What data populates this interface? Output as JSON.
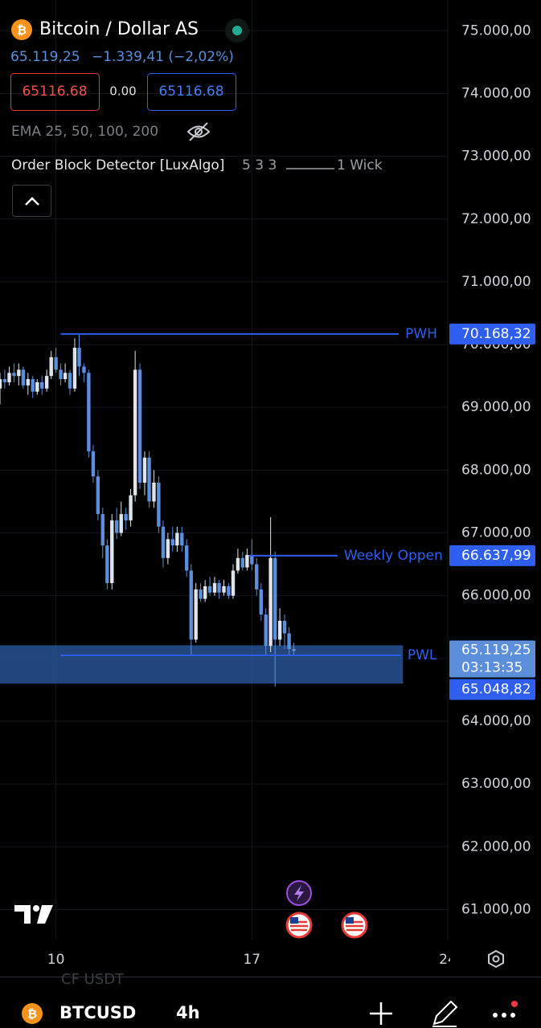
{
  "header": {
    "title": "Bitcoin / Dollar AS",
    "change": "−1.339,41 (−2,02%)",
    "sell": "65116.68",
    "spread": "0.00",
    "buy": "65116.68",
    "ema": "EMA 25, 50, 100, 200",
    "indicator": "Order Block Detector [LuxAlgo]",
    "indicator_params": "5 3 3",
    "indicator_wick": "1 Wick"
  },
  "chart_data": {
    "type": "candlestick",
    "xlim": [
      8,
      24
    ],
    "xticks": [
      10,
      17,
      24
    ],
    "ylim": [
      60520,
      75490
    ],
    "yticks": [
      {
        "value": 61000,
        "label": "61.000,00"
      },
      {
        "value": 62000,
        "label": "62.000,00"
      },
      {
        "value": 63000,
        "label": "63.000,00"
      },
      {
        "value": 64000,
        "label": "64.000,00"
      },
      {
        "value": 65000,
        "label": "65.000,00"
      },
      {
        "value": 66000,
        "label": "66.000,00"
      },
      {
        "value": 67000,
        "label": "67.000,00"
      },
      {
        "value": 68000,
        "label": "68.000,00"
      },
      {
        "value": 69000,
        "label": "69.000,00"
      },
      {
        "value": 70000,
        "label": "70.000,00"
      },
      {
        "value": 71000,
        "label": "71.000,00"
      },
      {
        "value": 72000,
        "label": "72.000,00"
      },
      {
        "value": 73000,
        "label": "73.000,00"
      },
      {
        "value": 74000,
        "label": "74.000,00"
      },
      {
        "value": 75000,
        "label": "75.000,00"
      }
    ],
    "grid": true,
    "up_color": "#dfe3ea",
    "down_color": "#5b8fdc",
    "x": [
      8,
      8.17,
      8.33,
      8.5,
      8.67,
      8.83,
      9,
      9.17,
      9.33,
      9.5,
      9.67,
      9.83,
      10,
      10.17,
      10.33,
      10.5,
      10.67,
      10.83,
      11,
      11.17,
      11.33,
      11.5,
      11.67,
      11.83,
      12,
      12.17,
      12.33,
      12.5,
      12.67,
      12.83,
      13,
      13.17,
      13.33,
      13.5,
      13.67,
      13.83,
      14,
      14.17,
      14.33,
      14.5,
      14.67,
      14.83,
      15,
      15.17,
      15.33,
      15.5,
      15.67,
      15.83,
      16,
      16.17,
      16.33,
      16.5,
      16.67,
      16.83,
      17,
      17.17,
      17.33,
      17.5,
      17.67,
      17.83,
      18,
      18.17,
      18.33,
      18.5
    ],
    "open": [
      69300,
      69450,
      69400,
      69550,
      69500,
      69600,
      69350,
      69450,
      69250,
      69400,
      69300,
      69500,
      69800,
      69600,
      69450,
      69550,
      69300,
      69950,
      69650,
      69550,
      68300,
      67900,
      67300,
      66800,
      66200,
      67200,
      67000,
      67300,
      67200,
      67600,
      69600,
      67800,
      68200,
      67500,
      67800,
      67100,
      66600,
      66900,
      66800,
      67000,
      66800,
      66400,
      65300,
      66100,
      65950,
      66150,
      66050,
      66200,
      66050,
      66150,
      66000,
      66400,
      66600,
      66450,
      66650,
      66500,
      66100,
      65700,
      65200,
      66600,
      65300,
      65600,
      65400,
      65150
    ],
    "high": [
      69550,
      69600,
      69650,
      69700,
      69700,
      69650,
      69550,
      69500,
      69450,
      69500,
      69600,
      69900,
      69950,
      69700,
      69700,
      69600,
      70100,
      70168.32,
      69700,
      69600,
      68400,
      68000,
      67400,
      66900,
      67300,
      67400,
      67500,
      67400,
      67700,
      69900,
      69700,
      68300,
      68300,
      68000,
      67900,
      67200,
      67000,
      67100,
      67100,
      67100,
      66900,
      66500,
      66200,
      66200,
      66250,
      66300,
      66300,
      66250,
      66250,
      66200,
      66500,
      66750,
      66700,
      66750,
      66900,
      66600,
      66200,
      65800,
      67250,
      66700,
      65800,
      65700,
      65500,
      65250
    ],
    "low": [
      69050,
      69300,
      69350,
      69400,
      69350,
      69300,
      69200,
      69150,
      69200,
      69200,
      69250,
      69450,
      69550,
      69350,
      69400,
      69200,
      69250,
      69500,
      69400,
      68200,
      67800,
      67200,
      66600,
      66100,
      66100,
      66900,
      66950,
      67050,
      67100,
      67500,
      67700,
      67600,
      67400,
      67400,
      67000,
      66450,
      66500,
      66700,
      66700,
      66700,
      66300,
      65050,
      65250,
      65900,
      65900,
      66000,
      66000,
      65950,
      66000,
      65950,
      65950,
      66350,
      66400,
      66400,
      66400,
      66000,
      65600,
      65050,
      65100,
      64550,
      65200,
      65150,
      65050,
      65050
    ],
    "close": [
      69450,
      69400,
      69550,
      69500,
      69600,
      69350,
      69450,
      69250,
      69400,
      69300,
      69500,
      69800,
      69600,
      69450,
      69550,
      69300,
      69950,
      69650,
      69550,
      68300,
      67900,
      67300,
      66800,
      66200,
      67200,
      67000,
      67300,
      67200,
      67600,
      69600,
      67800,
      68200,
      67500,
      67800,
      67100,
      66600,
      66900,
      66800,
      67000,
      66800,
      66400,
      65300,
      66100,
      65950,
      66150,
      66050,
      66200,
      66050,
      66150,
      66000,
      66400,
      66600,
      66450,
      66650,
      66500,
      66100,
      65700,
      65200,
      66600,
      65300,
      65600,
      65400,
      65150,
      65119.25
    ],
    "zone": {
      "top": 65210,
      "bottom": 64600,
      "x_end": 22.4,
      "color": "#2c5ea8"
    },
    "levels": [
      {
        "name": "PWH",
        "value": 70168.32,
        "label": "70.168,32",
        "x_start": 10.17,
        "x_end": 22.25,
        "color": "#2f5ff0"
      },
      {
        "name": "Weekly Oppen",
        "value": 66637.99,
        "label": "66.637,99",
        "x_start": 16.9,
        "x_end": 20.06,
        "color": "#2f5ff0"
      },
      {
        "name": "PWL",
        "value": 65048.82,
        "label": "65.048,82",
        "x_start": 10.17,
        "x_end": 22.33,
        "color": "#2f5ff0"
      }
    ],
    "price": {
      "value": 65119.25,
      "label": "65.119,25",
      "countdown": "03:13:35",
      "color": "#5b8fdc"
    }
  },
  "footer": {
    "symbol": "BTCUSD",
    "interval": "4h",
    "faded": "CF USDT"
  }
}
